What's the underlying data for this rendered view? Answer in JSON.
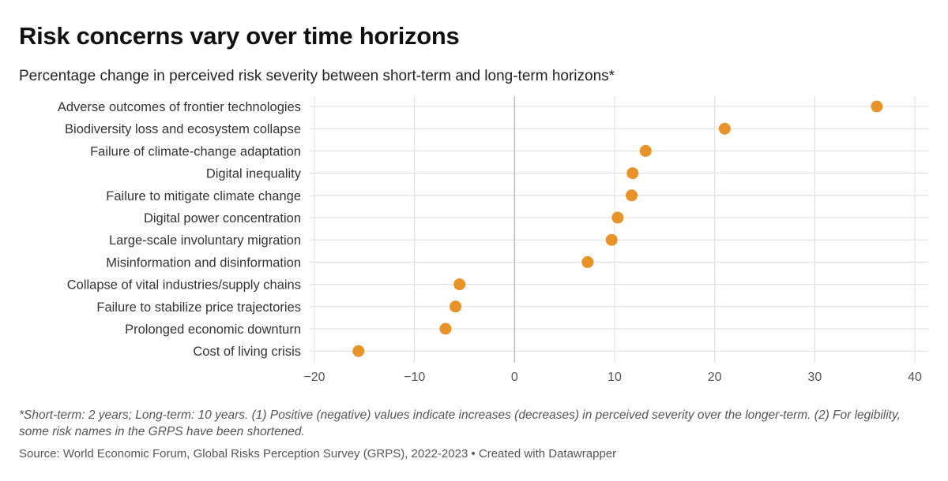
{
  "title": "Risk concerns vary over time horizons",
  "subtitle": "Percentage change in perceived risk severity between short-term and long-term horizons*",
  "footnote": "*Short-term: 2 years; Long-term: 10 years. (1) Positive (negative) values indicate increases (decreases) in perceived severity over the longer-term. (2) For legibility, some risk names in the GRPS have been shortened.",
  "source": "Source: World Economic Forum, Global Risks Perception Survey (GRPS), 2022-2023 • Created with Datawrapper",
  "colors": {
    "dot": "#e8922a",
    "grid": "#dcdcdc",
    "zero_line": "#bdbdbd"
  },
  "chart_data": {
    "type": "scatter",
    "title": "Risk concerns vary over time horizons",
    "xlabel": "",
    "ylabel": "",
    "xlim": [
      -20,
      40
    ],
    "xticks": [
      -20,
      -10,
      0,
      10,
      20,
      30,
      40
    ],
    "xtick_labels": [
      "−20",
      "−10",
      "0",
      "10",
      "20",
      "30",
      "40"
    ],
    "grid": true,
    "categories": [
      "Adverse outcomes of frontier technologies",
      "Biodiversity loss and ecosystem collapse",
      "Failure of climate-change adaptation",
      "Digital inequality",
      "Failure to mitigate climate change",
      "Digital power concentration",
      "Large-scale involuntary migration",
      "Misinformation and disinformation",
      "Collapse of vital industries/supply chains",
      "Failure to stabilize price trajectories",
      "Prolonged economic downturn",
      "Cost of living crisis"
    ],
    "values": [
      36.2,
      21.0,
      13.1,
      11.8,
      11.7,
      10.3,
      9.7,
      7.3,
      -5.5,
      -5.9,
      -6.9,
      -15.6
    ]
  }
}
